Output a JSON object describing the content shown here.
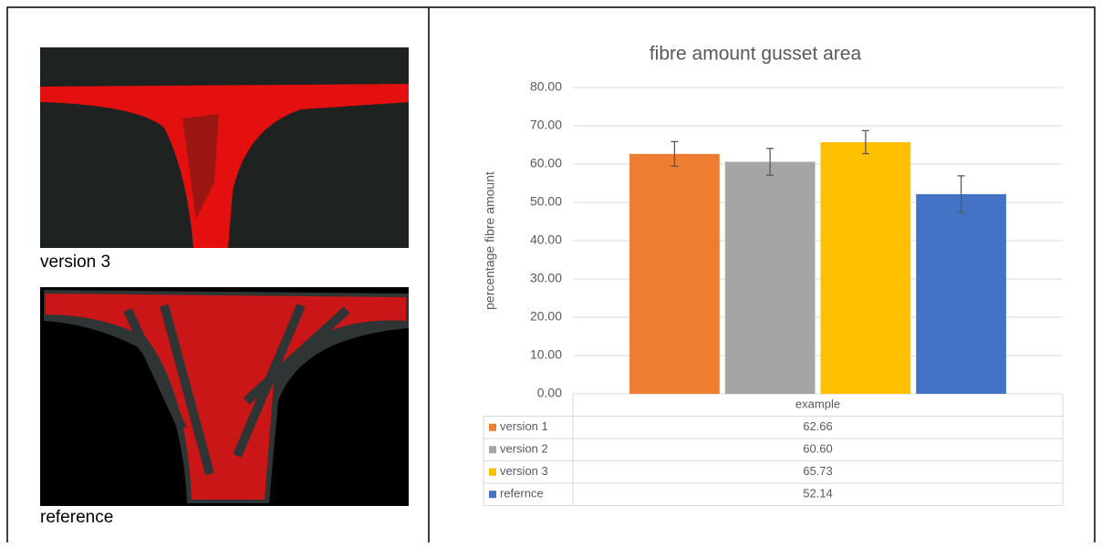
{
  "images": [
    {
      "caption": "version 3"
    },
    {
      "caption": "reference"
    }
  ],
  "chart_data": {
    "type": "bar",
    "title": "fibre amount gusset area",
    "y_label": "percentage fibre amount",
    "categories": [
      "example"
    ],
    "series": [
      {
        "name": "version 1",
        "color": "#ed7d31",
        "values": [
          62.66
        ],
        "value_labels": [
          "62.66"
        ],
        "errors": [
          3.2
        ]
      },
      {
        "name": "version 2",
        "color": "#a5a5a5",
        "values": [
          60.6
        ],
        "value_labels": [
          "60.60"
        ],
        "errors": [
          3.5
        ]
      },
      {
        "name": "version 3",
        "color": "#ffc000",
        "values": [
          65.73
        ],
        "value_labels": [
          "65.73"
        ],
        "errors": [
          3.0
        ]
      },
      {
        "name": "refernce",
        "color": "#4472c4",
        "values": [
          52.14
        ],
        "value_labels": [
          "52.14"
        ],
        "errors": [
          4.8
        ]
      }
    ],
    "ylim": [
      0,
      80
    ],
    "yticks": [
      {
        "value": 0,
        "label": "0.00"
      },
      {
        "value": 10,
        "label": "10.00"
      },
      {
        "value": 20,
        "label": "20.00"
      },
      {
        "value": 30,
        "label": "30.00"
      },
      {
        "value": 40,
        "label": "40.00"
      },
      {
        "value": 50,
        "label": "50.00"
      },
      {
        "value": 60,
        "label": "60.00"
      },
      {
        "value": 70,
        "label": "70.00"
      },
      {
        "value": 80,
        "label": "80.00"
      }
    ],
    "grid": true
  }
}
